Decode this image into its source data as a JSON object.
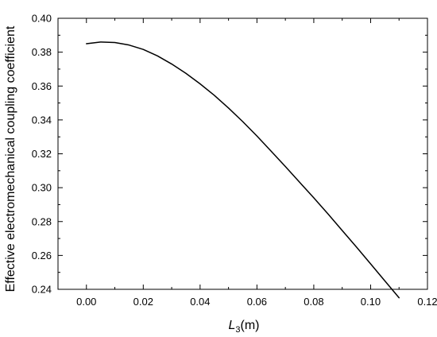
{
  "chart_data": {
    "type": "line",
    "title": "",
    "xlabel": "L",
    "xlabel_subscript": "3",
    "xlabel_unit": "(m)",
    "ylabel": "Effective electromechanical coupling coefficient",
    "xlim": [
      -0.01,
      0.12
    ],
    "ylim": [
      0.24,
      0.4
    ],
    "xticks": [
      0.0,
      0.02,
      0.04,
      0.06,
      0.08,
      0.1,
      0.12
    ],
    "xtick_labels": [
      "0.00",
      "0.02",
      "0.04",
      "0.06",
      "0.08",
      "0.10",
      "0.12"
    ],
    "yticks": [
      0.24,
      0.26,
      0.28,
      0.3,
      0.32,
      0.34,
      0.36,
      0.38,
      0.4
    ],
    "ytick_labels": [
      "0.24",
      "0.26",
      "0.28",
      "0.30",
      "0.32",
      "0.34",
      "0.36",
      "0.38",
      "0.40"
    ],
    "grid": false,
    "legend": "none",
    "line_color": "#000000",
    "series": [
      {
        "x": [
          0.0,
          0.005,
          0.01,
          0.015,
          0.02,
          0.025,
          0.03,
          0.035,
          0.04,
          0.045,
          0.05,
          0.055,
          0.06,
          0.065,
          0.07,
          0.075,
          0.08,
          0.085,
          0.09,
          0.095,
          0.1,
          0.105,
          0.11
        ],
        "y": [
          0.385,
          0.386,
          0.3857,
          0.3842,
          0.3816,
          0.3778,
          0.373,
          0.3675,
          0.3613,
          0.3545,
          0.347,
          0.339,
          0.3305,
          0.3215,
          0.3125,
          0.3032,
          0.294,
          0.2845,
          0.2747,
          0.265,
          0.255,
          0.245,
          0.235
        ]
      }
    ]
  }
}
